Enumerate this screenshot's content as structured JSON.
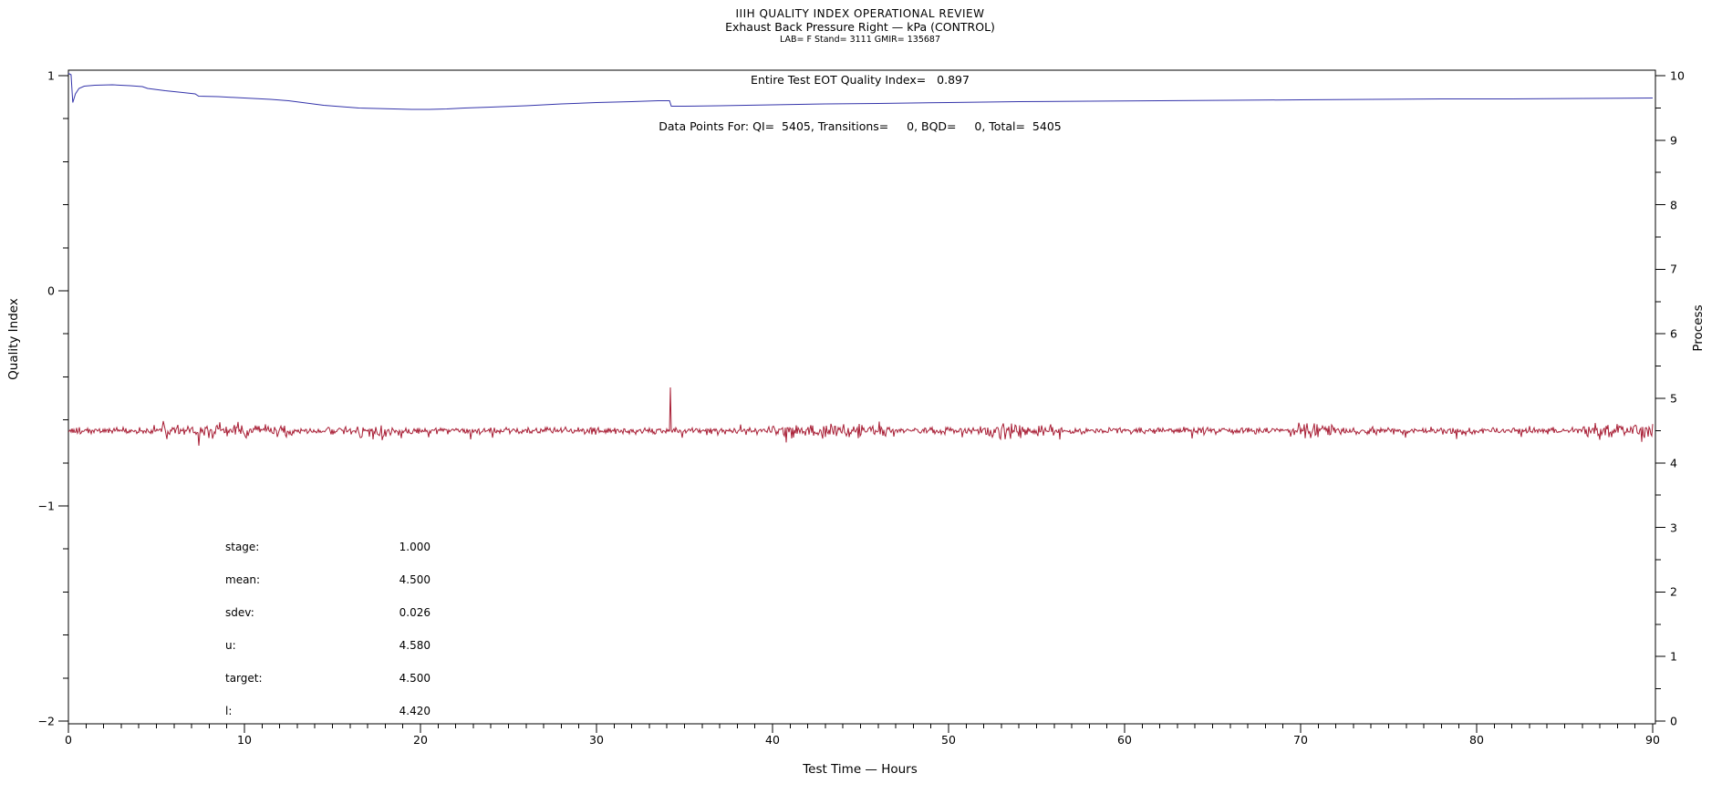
{
  "header": {
    "title1": "IIIH QUALITY INDEX OPERATIONAL REVIEW",
    "title2": "Exhaust Back Pressure Right — kPa (CONTROL)",
    "title3": "LAB= F Stand= 3111 GMIR= 135687"
  },
  "annotations": {
    "eot": "Entire Test EOT Quality Index=   0.897",
    "data_points": "Data Points For: QI=  5405, Transitions=     0, BQD=     0, Total=  5405"
  },
  "stats": {
    "rows": [
      {
        "label": "stage:",
        "value": "1.000"
      },
      {
        "label": "mean:",
        "value": "4.500"
      },
      {
        "label": "sdev:",
        "value": "0.026"
      },
      {
        "label": "u:",
        "value": "4.580"
      },
      {
        "label": "target:",
        "value": "4.500"
      },
      {
        "label": "l:",
        "value": "4.420"
      }
    ]
  },
  "chart_data": {
    "type": "line",
    "title": "IIIH QUALITY INDEX OPERATIONAL REVIEW",
    "subtitle": "Exhaust Back Pressure Right — kPa (CONTROL)",
    "xlabel": "Test Time — Hours",
    "ylabel_left": "Quality Index",
    "ylabel_right": "Process",
    "grid": false,
    "x_range": [
      0,
      90
    ],
    "x_ticks": [
      0,
      10,
      20,
      30,
      40,
      50,
      60,
      70,
      80,
      90
    ],
    "x_minor_step": 1,
    "y_left_range": [
      -2,
      1
    ],
    "y_left_ticks": [
      1,
      0,
      -1,
      -2
    ],
    "y_left_minor_step": 0.2,
    "y_right_range": [
      0,
      10
    ],
    "y_right_ticks": [
      10,
      9,
      8,
      7,
      6,
      5,
      4,
      3,
      2,
      1,
      0
    ],
    "y_right_minor_step": 0.5,
    "colors": {
      "quality_index": "#3434aa",
      "process": "#a81e35",
      "frame": "#000000"
    },
    "series": [
      {
        "name": "quality_index",
        "axis": "left",
        "final_value": 0.897,
        "points": [
          [
            0.0,
            1.01
          ],
          [
            0.15,
            1.005
          ],
          [
            0.25,
            0.875
          ],
          [
            0.4,
            0.915
          ],
          [
            0.6,
            0.94
          ],
          [
            0.9,
            0.952
          ],
          [
            1.5,
            0.956
          ],
          [
            2.5,
            0.957
          ],
          [
            3.5,
            0.953
          ],
          [
            4.2,
            0.95
          ],
          [
            4.5,
            0.94
          ],
          [
            5.5,
            0.93
          ],
          [
            6.5,
            0.922
          ],
          [
            7.2,
            0.916
          ],
          [
            7.4,
            0.905
          ],
          [
            8.5,
            0.902
          ],
          [
            9.5,
            0.898
          ],
          [
            10.5,
            0.894
          ],
          [
            11.5,
            0.889
          ],
          [
            12.5,
            0.883
          ],
          [
            13.5,
            0.873
          ],
          [
            14.5,
            0.862
          ],
          [
            15.5,
            0.855
          ],
          [
            16.5,
            0.85
          ],
          [
            17.5,
            0.847
          ],
          [
            18.5,
            0.845
          ],
          [
            19.5,
            0.8435
          ],
          [
            20.5,
            0.843
          ],
          [
            21.5,
            0.845
          ],
          [
            22.5,
            0.849
          ],
          [
            24,
            0.854
          ],
          [
            26,
            0.861
          ],
          [
            28,
            0.868
          ],
          [
            30,
            0.874
          ],
          [
            32,
            0.879
          ],
          [
            33.5,
            0.883
          ],
          [
            34.15,
            0.884
          ],
          [
            34.25,
            0.8575
          ],
          [
            35,
            0.858
          ],
          [
            37,
            0.861
          ],
          [
            40,
            0.8645
          ],
          [
            43,
            0.868
          ],
          [
            46,
            0.8715
          ],
          [
            50,
            0.8755
          ],
          [
            54,
            0.879
          ],
          [
            58,
            0.8815
          ],
          [
            62,
            0.8835
          ],
          [
            66,
            0.8855
          ],
          [
            70,
            0.8875
          ],
          [
            74,
            0.8895
          ],
          [
            78,
            0.891
          ],
          [
            82,
            0.8925
          ],
          [
            86,
            0.894
          ],
          [
            90,
            0.897
          ]
        ]
      },
      {
        "name": "process",
        "axis": "right",
        "mean": 4.5,
        "sdev": 0.026,
        "upper_limit": 4.58,
        "target": 4.5,
        "lower_limit": 4.42,
        "n_points": 5405,
        "spike": {
          "x": 34.2,
          "value": 5.17
        },
        "noise_bursts": [
          [
            5,
            12.5
          ],
          [
            16.5,
            18.5
          ],
          [
            40,
            47
          ],
          [
            52,
            56
          ],
          [
            69.5,
            72
          ],
          [
            86,
            90
          ]
        ]
      }
    ]
  }
}
